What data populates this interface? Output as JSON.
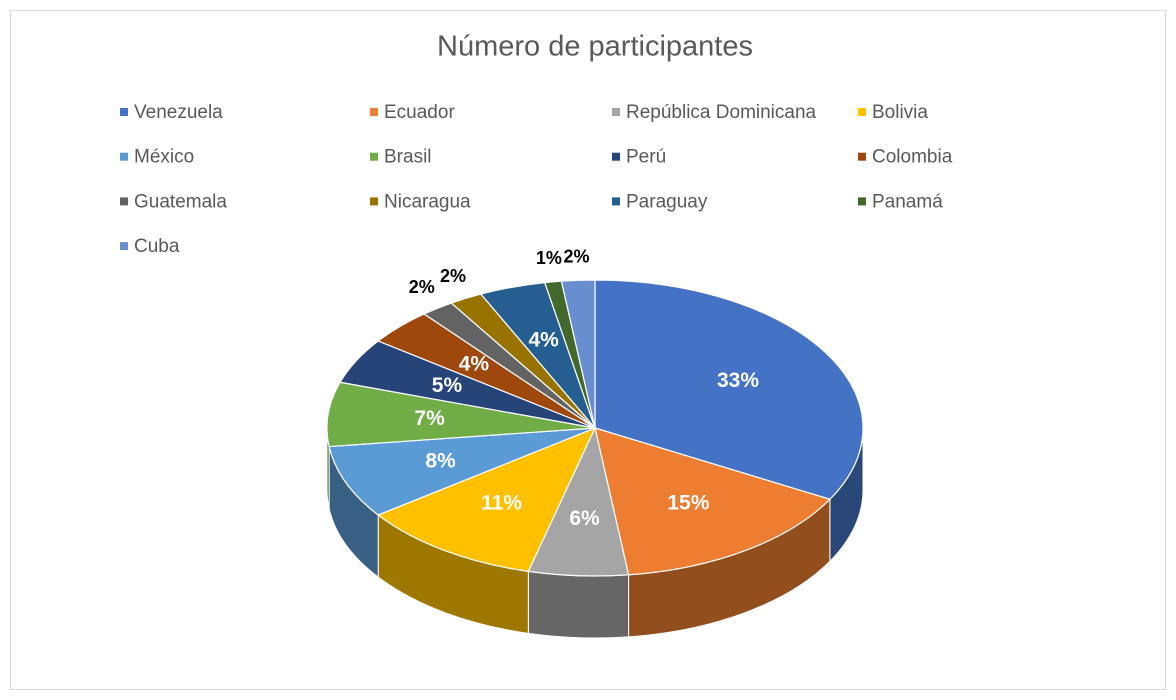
{
  "chart_data": {
    "type": "pie3d",
    "title": "Número de participantes",
    "categories": [
      "Venezuela",
      "Ecuador",
      "República Dominicana",
      "Bolivia",
      "México",
      "Brasil",
      "Perú",
      "Colombia",
      "Guatemala",
      "Nicaragua",
      "Paraguay",
      "Panamá",
      "Cuba"
    ],
    "values": [
      33,
      15,
      6,
      11,
      8,
      7,
      5,
      4,
      2,
      2,
      4,
      1,
      2
    ],
    "value_labels": [
      "33%",
      "15%",
      "6%",
      "11%",
      "8%",
      "7%",
      "5%",
      "4%",
      "2%",
      "2%",
      "4%",
      "1%",
      "2%"
    ],
    "colors": [
      "#4472c4",
      "#ed7d31",
      "#a5a5a5",
      "#ffc000",
      "#5b9bd5",
      "#70ad47",
      "#264478",
      "#9e480e",
      "#636363",
      "#997300",
      "#255e91",
      "#43682b",
      "#698ed0"
    ],
    "legend": "top"
  }
}
